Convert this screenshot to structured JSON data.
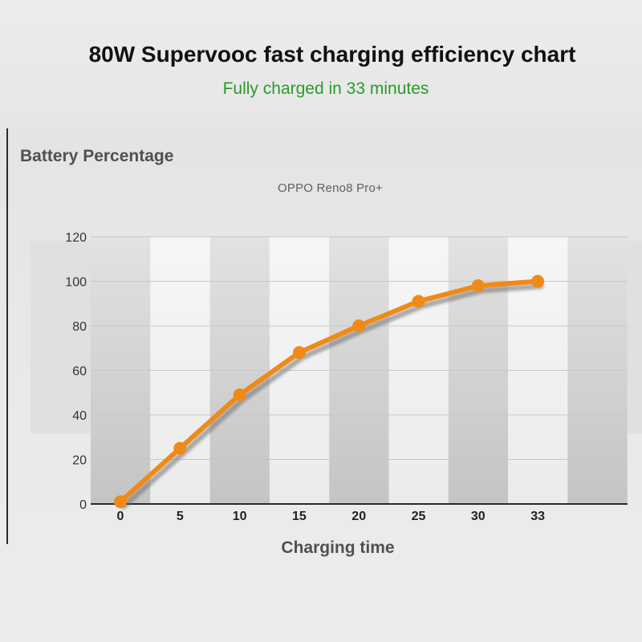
{
  "title": "80W Supervooc fast charging efficiency chart",
  "subtitle": "Fully charged in 33 minutes",
  "colors": {
    "line": "#f08a16",
    "subtitle": "#2a9a2a",
    "axis": "#2a2a2a"
  },
  "chart_data": {
    "type": "line",
    "ylabel": "Battery Percentage",
    "xlabel": "Charging time",
    "categories": [
      "0",
      "5",
      "10",
      "15",
      "20",
      "25",
      "30",
      "33"
    ],
    "series": [
      {
        "name": "OPPO Reno8 Pro+",
        "values": [
          1,
          25,
          49,
          68,
          80,
          91,
          98,
          100
        ]
      }
    ],
    "ylim": [
      0,
      120
    ],
    "yticks": [
      0,
      20,
      40,
      60,
      80,
      100,
      120
    ],
    "grid": true,
    "legend": "top-center"
  }
}
